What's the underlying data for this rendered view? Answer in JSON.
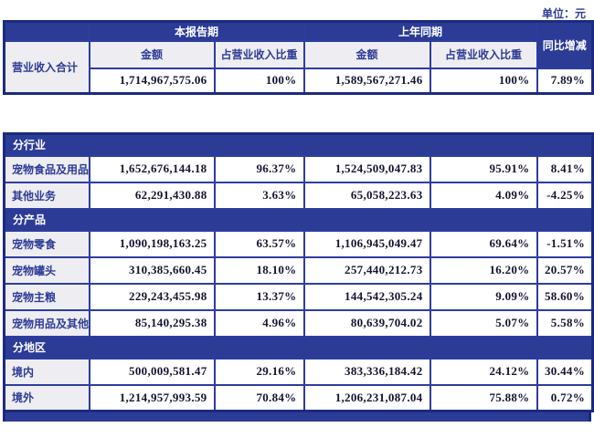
{
  "unit_label": "单位：元",
  "colors": {
    "header_blue": "#2c3b96",
    "outer_border": "#1c2a7e",
    "inner_border": "#2e3d9e",
    "label_bg": "#eeedf1",
    "label_text": "#2c3b96",
    "value_text": "#141432"
  },
  "table": {
    "header": {
      "current_period": "本报告期",
      "prior_period": "上年同期",
      "yoy": "同比增减",
      "amount_current": "金额",
      "ratio_current": "占营业收入比重",
      "amount_prior": "金额",
      "ratio_prior": "占营业收入比重"
    },
    "total_row": {
      "label": "营业收入合计",
      "amount_current": "1,714,967,575.06",
      "ratio_current": "100%",
      "amount_prior": "1,589,567,271.46",
      "ratio_prior": "100%",
      "yoy": "7.89%"
    },
    "sections": [
      {
        "title": "分行业",
        "rows": [
          {
            "label": "宠物食品及用品",
            "amount_current": "1,652,676,144.18",
            "ratio_current": "96.37%",
            "amount_prior": "1,524,509,047.83",
            "ratio_prior": "95.91%",
            "yoy": "8.41%"
          },
          {
            "label": "其他业务",
            "amount_current": "62,291,430.88",
            "ratio_current": "3.63%",
            "amount_prior": "65,058,223.63",
            "ratio_prior": "4.09%",
            "yoy": "-4.25%"
          }
        ]
      },
      {
        "title": "分产品",
        "rows": [
          {
            "label": "宠物零食",
            "amount_current": "1,090,198,163.25",
            "ratio_current": "63.57%",
            "amount_prior": "1,106,945,049.47",
            "ratio_prior": "69.64%",
            "yoy": "-1.51%"
          },
          {
            "label": "宠物罐头",
            "amount_current": "310,385,660.45",
            "ratio_current": "18.10%",
            "amount_prior": "257,440,212.73",
            "ratio_prior": "16.20%",
            "yoy": "20.57%"
          },
          {
            "label": "宠物主粮",
            "amount_current": "229,243,455.98",
            "ratio_current": "13.37%",
            "amount_prior": "144,542,305.24",
            "ratio_prior": "9.09%",
            "yoy": "58.60%"
          },
          {
            "label": "宠物用品及其他",
            "amount_current": "85,140,295.38",
            "ratio_current": "4.96%",
            "amount_prior": "80,639,704.02",
            "ratio_prior": "5.07%",
            "yoy": "5.58%"
          }
        ]
      },
      {
        "title": "分地区",
        "rows": [
          {
            "label": "境内",
            "amount_current": "500,009,581.47",
            "ratio_current": "29.16%",
            "amount_prior": "383,336,184.42",
            "ratio_prior": "24.12%",
            "yoy": "30.44%"
          },
          {
            "label": "境外",
            "amount_current": "1,214,957,993.59",
            "ratio_current": "70.84%",
            "amount_prior": "1,206,231,087.04",
            "ratio_prior": "75.88%",
            "yoy": "0.72%"
          }
        ]
      }
    ]
  }
}
